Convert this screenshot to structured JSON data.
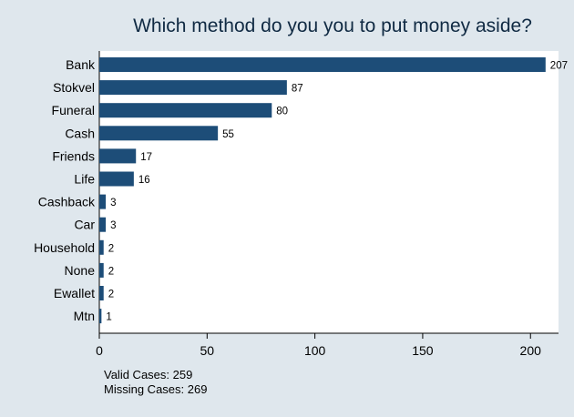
{
  "chart_data": {
    "type": "bar",
    "orientation": "horizontal",
    "title": "Which method do you you to put money aside?",
    "categories": [
      "Bank",
      "Stokvel",
      "Funeral",
      "Cash",
      "Friends",
      "Life",
      "Cashback",
      "Car",
      "Household",
      "None",
      "Ewallet",
      "Mtn"
    ],
    "values": [
      207,
      87,
      80,
      55,
      17,
      16,
      3,
      3,
      2,
      2,
      2,
      1
    ],
    "xlabel": "",
    "ylabel": "",
    "xlim": [
      0,
      213
    ],
    "xticks": [
      0,
      50,
      100,
      150,
      200
    ],
    "grid": false,
    "legend": "none",
    "bar_color": "#1d4d78",
    "plot_background": "#ffffff",
    "outer_background": "#dfe7ed"
  },
  "notes": {
    "valid_cases": "Valid Cases: 259",
    "missing_cases": "Missing Cases: 269"
  }
}
